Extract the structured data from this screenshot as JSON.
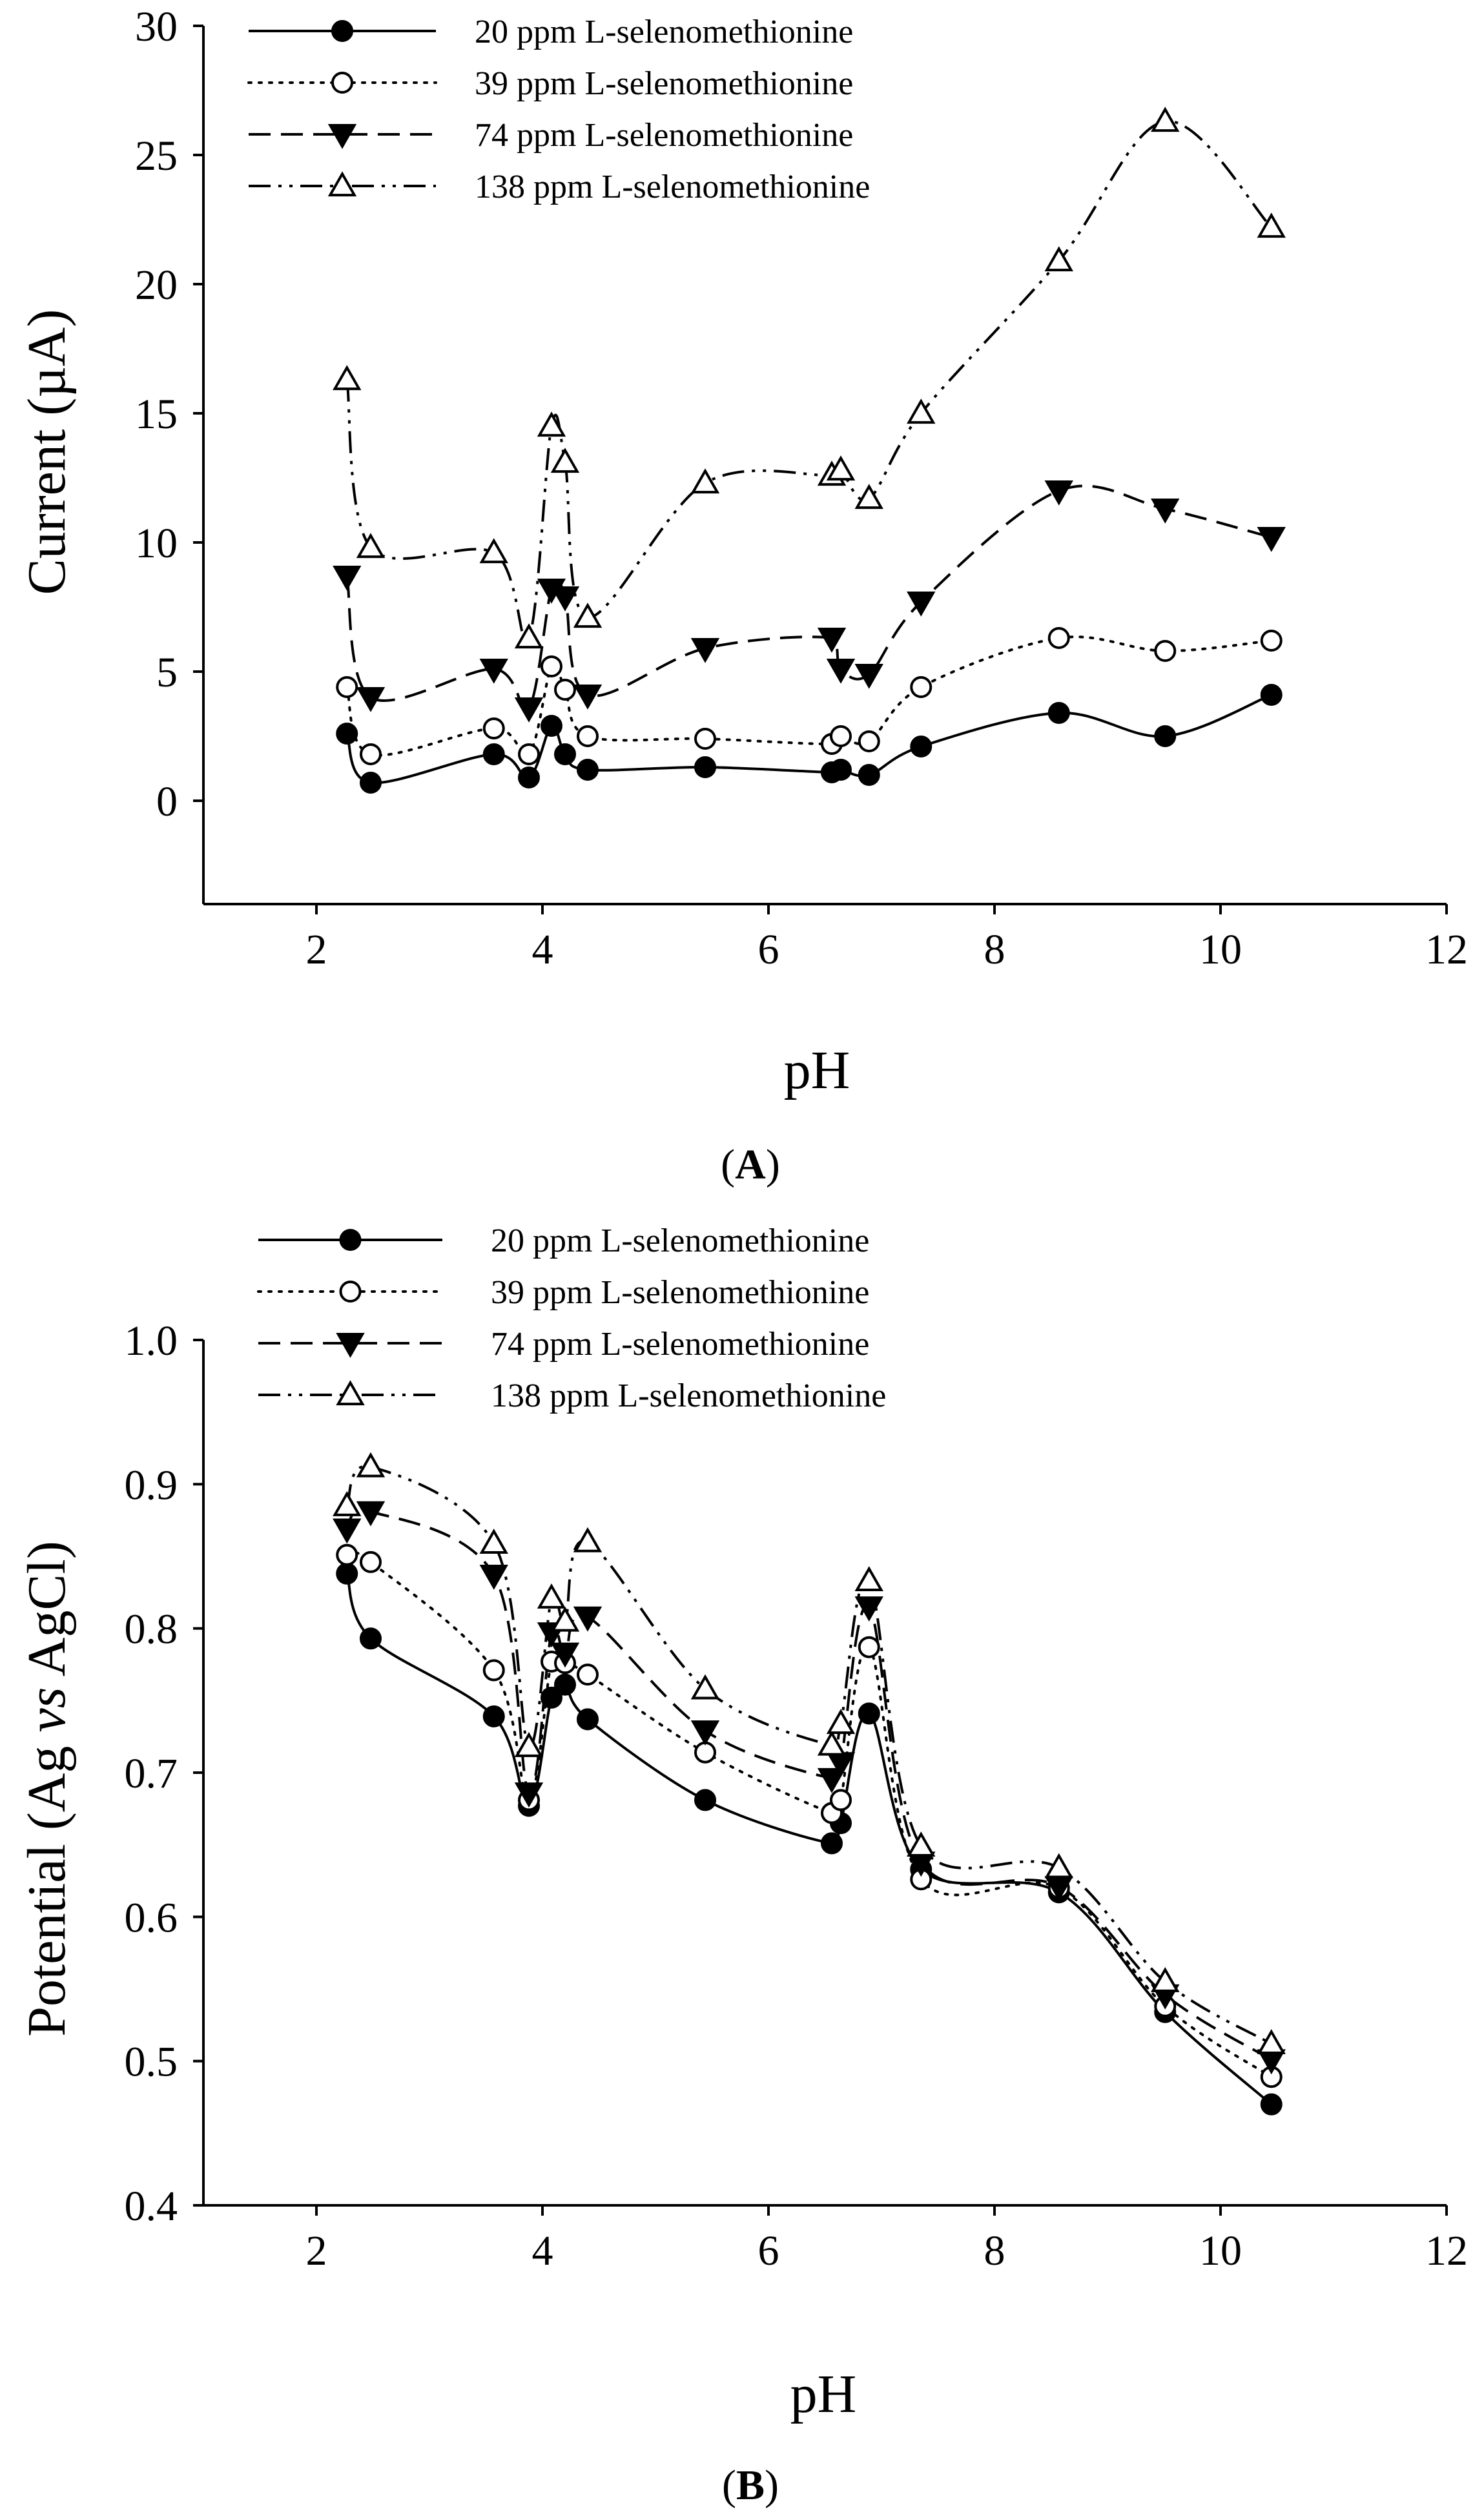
{
  "chart_data": [
    {
      "id": "A",
      "type": "line",
      "panel_label": "A",
      "xlabel": "pH",
      "ylabel": "Current (µA)",
      "xlim": [
        1,
        12
      ],
      "ylim": [
        -4,
        30
      ],
      "xticks": [
        "2",
        "4",
        "6",
        "8",
        "10",
        "12"
      ],
      "xtick_values": [
        2,
        4,
        6,
        8,
        10,
        12
      ],
      "yticks": [
        "0",
        "5",
        "10",
        "15",
        "20",
        "25",
        "30"
      ],
      "ytick_values": [
        0,
        5,
        10,
        15,
        20,
        25,
        30
      ],
      "legend_position": "top-left",
      "series": [
        {
          "name": "20 ppm L-selenomethionine",
          "marker": "filled-circle",
          "dash": "solid",
          "x": [
            2.27,
            2.48,
            3.57,
            3.88,
            4.08,
            4.2,
            4.4,
            5.44,
            6.56,
            6.64,
            6.89,
            7.35,
            8.57,
            9.51,
            10.45
          ],
          "y": [
            2.6,
            0.7,
            1.8,
            0.9,
            2.9,
            1.8,
            1.2,
            1.3,
            1.1,
            1.2,
            1.0,
            2.1,
            3.4,
            2.5,
            4.1
          ]
        },
        {
          "name": "39 ppm L-selenomethionine",
          "marker": "open-circle",
          "dash": "dotted",
          "x": [
            2.27,
            2.48,
            3.57,
            3.88,
            4.08,
            4.2,
            4.4,
            5.44,
            6.56,
            6.64,
            6.89,
            7.35,
            8.57,
            9.51,
            10.45
          ],
          "y": [
            4.4,
            1.8,
            2.8,
            1.8,
            5.2,
            4.3,
            2.5,
            2.4,
            2.2,
            2.5,
            2.3,
            4.4,
            6.3,
            5.8,
            6.2
          ]
        },
        {
          "name": "74 ppm L-selenomethionine",
          "marker": "filled-triangle-down",
          "dash": "dashed",
          "x": [
            2.27,
            2.48,
            3.57,
            3.88,
            4.08,
            4.2,
            4.4,
            5.44,
            6.56,
            6.64,
            6.89,
            7.35,
            8.57,
            9.51,
            10.45
          ],
          "y": [
            8.7,
            4.0,
            5.1,
            3.6,
            8.2,
            7.9,
            4.1,
            5.9,
            6.3,
            5.1,
            4.9,
            7.7,
            12.0,
            11.3,
            10.2
          ]
        },
        {
          "name": "138 ppm L-selenomethionine",
          "marker": "open-triangle-up",
          "dash": "dash-dot-dot",
          "x": [
            2.27,
            2.48,
            3.57,
            3.88,
            4.08,
            4.2,
            4.4,
            5.44,
            6.56,
            6.64,
            6.89,
            7.35,
            8.57,
            9.51,
            10.45
          ],
          "y": [
            16.3,
            9.8,
            9.6,
            6.3,
            14.5,
            13.1,
            7.1,
            12.3,
            12.6,
            12.8,
            11.7,
            15.0,
            20.9,
            26.3,
            22.2
          ]
        }
      ]
    },
    {
      "id": "B",
      "type": "line",
      "panel_label": "B",
      "xlabel": "pH",
      "ylabel_parts": [
        "Potential (Ag ",
        "vs",
        " AgCl)"
      ],
      "xlim": [
        1,
        12
      ],
      "ylim": [
        0.4,
        1.0
      ],
      "xticks": [
        "2",
        "4",
        "6",
        "8",
        "10",
        "12"
      ],
      "xtick_values": [
        2,
        4,
        6,
        8,
        10,
        12
      ],
      "yticks": [
        "0.4",
        "0.5",
        "0.6",
        "0.7",
        "0.8",
        "0.9",
        "1.0"
      ],
      "ytick_values": [
        0.4,
        0.5,
        0.6,
        0.7,
        0.8,
        0.9,
        1.0
      ],
      "legend_position": "top-left",
      "series": [
        {
          "name": "20 ppm L-selenomethionine",
          "marker": "filled-circle",
          "dash": "solid",
          "x": [
            2.27,
            2.48,
            3.57,
            3.88,
            4.08,
            4.2,
            4.4,
            5.44,
            6.56,
            6.64,
            6.89,
            7.35,
            8.57,
            9.51,
            10.45
          ],
          "y": [
            0.838,
            0.793,
            0.739,
            0.677,
            0.752,
            0.761,
            0.737,
            0.681,
            0.651,
            0.665,
            0.741,
            0.633,
            0.617,
            0.534,
            0.47
          ]
        },
        {
          "name": "39 ppm L-selenomethionine",
          "marker": "open-circle",
          "dash": "dotted",
          "x": [
            2.27,
            2.48,
            3.57,
            3.88,
            4.08,
            4.2,
            4.4,
            5.44,
            6.56,
            6.64,
            6.89,
            7.35,
            8.57,
            9.51,
            10.45
          ],
          "y": [
            0.851,
            0.846,
            0.771,
            0.681,
            0.777,
            0.776,
            0.768,
            0.714,
            0.672,
            0.681,
            0.787,
            0.626,
            0.62,
            0.538,
            0.489
          ]
        },
        {
          "name": "74 ppm L-selenomethionine",
          "marker": "filled-triangle-down",
          "dash": "dashed",
          "x": [
            2.27,
            2.48,
            3.57,
            3.88,
            4.08,
            4.2,
            4.4,
            5.44,
            6.56,
            6.64,
            6.89,
            7.35,
            8.57,
            9.51,
            10.45
          ],
          "y": [
            0.869,
            0.881,
            0.837,
            0.686,
            0.797,
            0.783,
            0.808,
            0.729,
            0.696,
            0.707,
            0.815,
            0.638,
            0.621,
            0.546,
            0.501
          ]
        },
        {
          "name": "138 ppm L-selenomethionine",
          "marker": "open-triangle-up",
          "dash": "dash-dot-dot",
          "x": [
            2.27,
            2.48,
            3.57,
            3.88,
            4.08,
            4.2,
            4.4,
            5.44,
            6.56,
            6.64,
            6.89,
            7.35,
            8.57,
            9.51,
            10.45
          ],
          "y": [
            0.885,
            0.912,
            0.859,
            0.718,
            0.821,
            0.805,
            0.86,
            0.758,
            0.719,
            0.734,
            0.833,
            0.649,
            0.634,
            0.555,
            0.512
          ]
        }
      ]
    }
  ]
}
